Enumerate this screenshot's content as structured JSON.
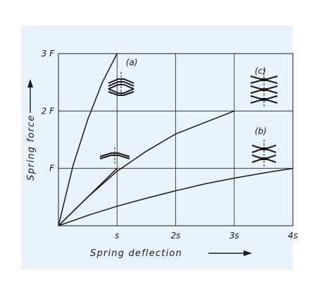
{
  "chart_data": {
    "type": "line",
    "xlabel": "Spring deflection",
    "ylabel": "Spring force",
    "xlim": [
      0,
      4
    ],
    "ylim": [
      0,
      3
    ],
    "x_ticks": [
      "s",
      "2s",
      "3s",
      "4s"
    ],
    "y_ticks": [
      "F",
      "2 F",
      "3 F"
    ],
    "grid": true,
    "series": [
      {
        "name": "(a)",
        "x": [
          0,
          0.25,
          0.5,
          0.75,
          1.0
        ],
        "y": [
          0,
          1.05,
          1.85,
          2.5,
          3.0
        ]
      },
      {
        "name": "",
        "x": [
          0,
          0.5,
          1.0
        ],
        "y": [
          0,
          0.5,
          1.0
        ]
      },
      {
        "name": "(c)",
        "x": [
          0,
          0.5,
          1.0,
          1.5,
          2.0,
          2.5,
          3.0
        ],
        "y": [
          0,
          0.5,
          0.95,
          1.3,
          1.6,
          1.8,
          2.0
        ]
      },
      {
        "name": "(b)",
        "x": [
          0,
          0.5,
          1.0,
          1.5,
          2.0,
          2.5,
          3.0,
          3.5,
          4.0
        ],
        "y": [
          0,
          0.18,
          0.34,
          0.48,
          0.61,
          0.73,
          0.83,
          0.92,
          1.0
        ]
      }
    ],
    "colors": {
      "line": "#1a1a1a",
      "grid": "#1a1a1a",
      "background": "#e9f3fb"
    }
  }
}
